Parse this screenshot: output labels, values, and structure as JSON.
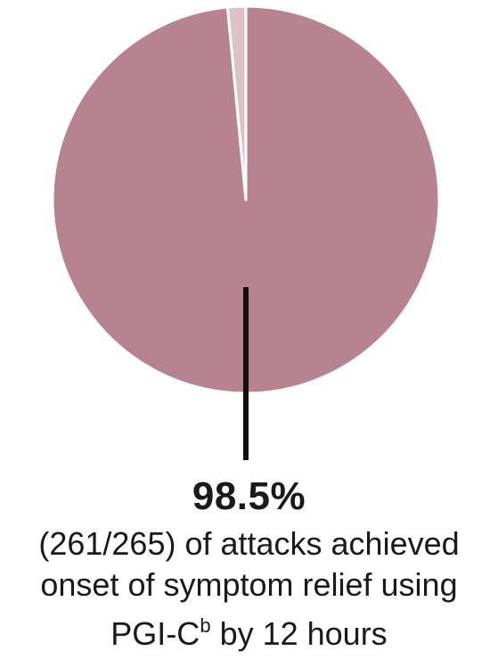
{
  "chart_data": {
    "type": "pie",
    "values": [
      261,
      4
    ],
    "total": 265,
    "colors": [
      "#b78391",
      "#dcc2c8"
    ],
    "highlight_label": "98.5%",
    "description_lines": [
      "(261/265) of attacks achieved",
      "onset of symptom relief using",
      "PGI-C",
      "b",
      " by 12 hours"
    ]
  }
}
